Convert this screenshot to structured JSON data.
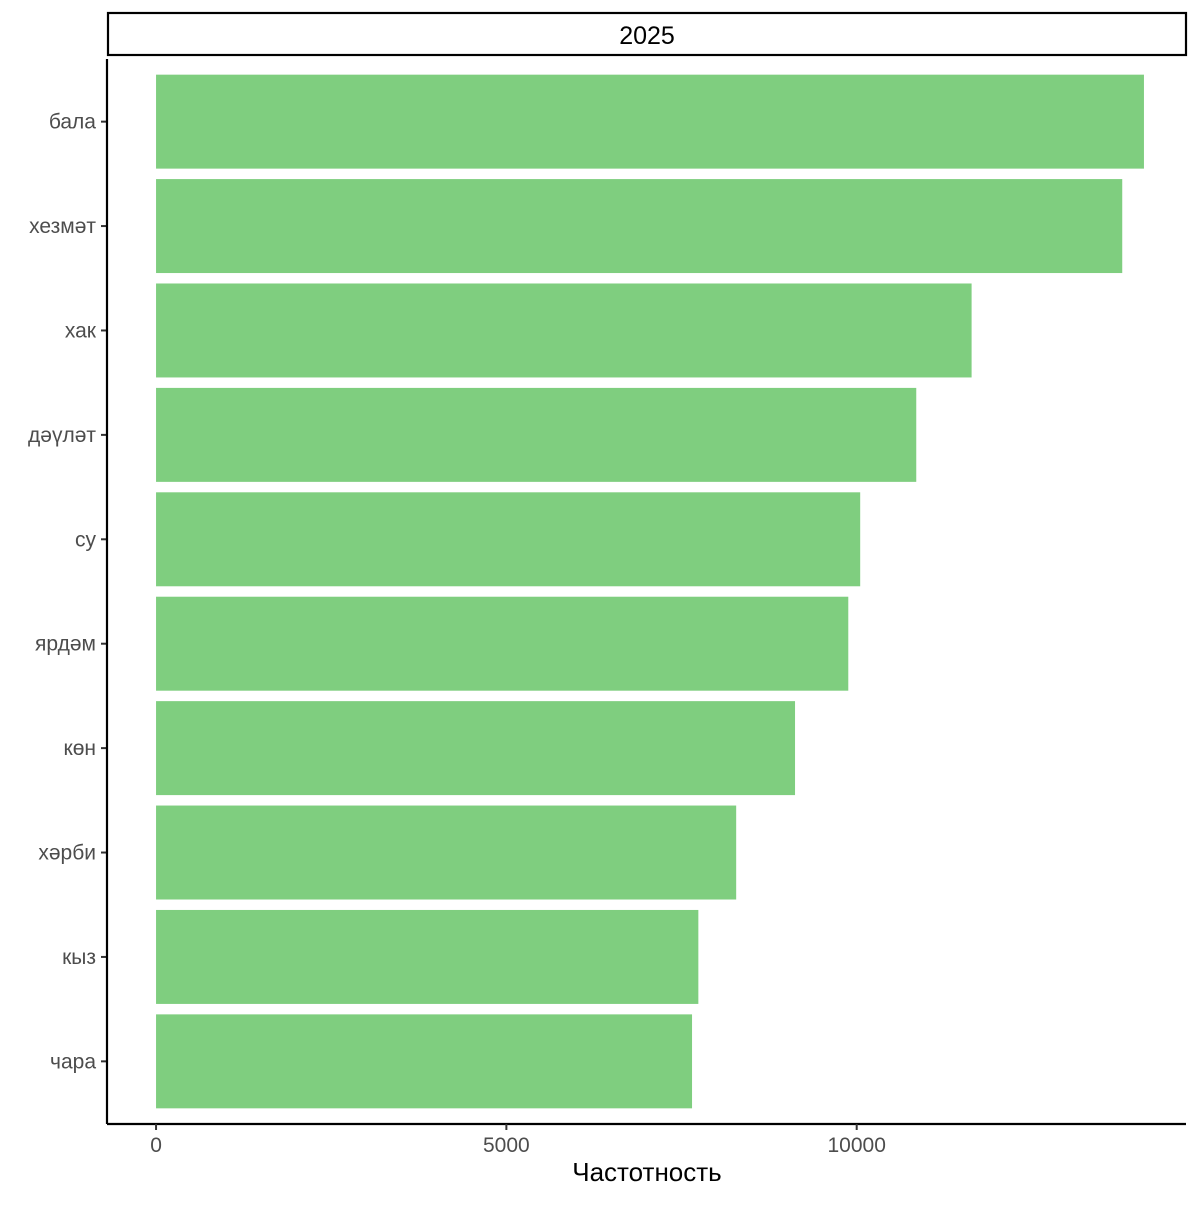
{
  "chart_data": {
    "type": "bar",
    "orientation": "horizontal",
    "facet_label": "2025",
    "xlabel": "Частотность",
    "ylabel": "",
    "xlim": [
      -700,
      14700
    ],
    "x_ticks": [
      0,
      5000,
      10000
    ],
    "x_tick_labels": [
      "0",
      "5000",
      "10000"
    ],
    "categories": [
      "бала",
      "хезмәт",
      "хак",
      "дәүләт",
      "су",
      "ярдәм",
      "көн",
      "хәрби",
      "кыз",
      "чара"
    ],
    "values": [
      14100,
      13790,
      11640,
      10850,
      10050,
      9880,
      9120,
      8280,
      7740,
      7650
    ],
    "bar_color": "#7fce7f",
    "grid": false,
    "legend": "none"
  }
}
